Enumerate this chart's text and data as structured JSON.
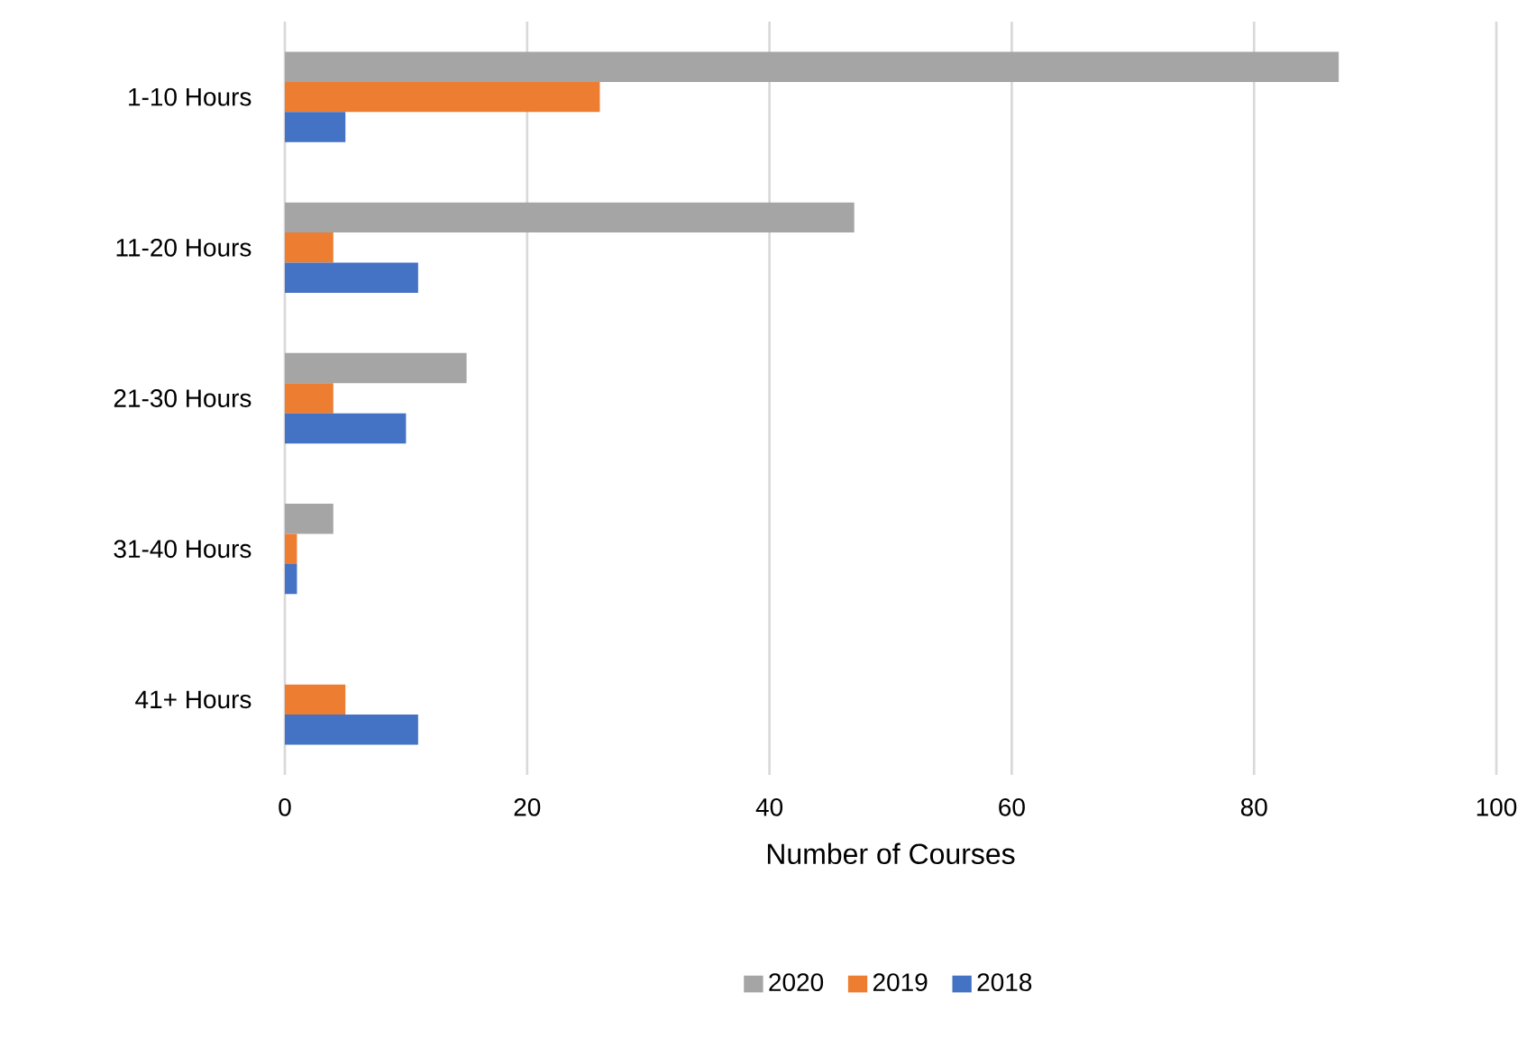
{
  "chart_data": {
    "type": "bar",
    "orientation": "horizontal",
    "xlabel": "Number of Courses",
    "categories": [
      "1-10 Hours",
      "11-20 Hours",
      "21-30 Hours",
      "31-40 Hours",
      "41+ Hours"
    ],
    "series": [
      {
        "name": "2020",
        "color": "#a5a5a5",
        "values": [
          87,
          47,
          15,
          4,
          0
        ]
      },
      {
        "name": "2019",
        "color": "#ed7d31",
        "values": [
          26,
          4,
          4,
          1,
          5
        ]
      },
      {
        "name": "2018",
        "color": "#4472c4",
        "values": [
          5,
          11,
          10,
          1,
          11
        ]
      }
    ],
    "xlim": [
      0,
      100
    ],
    "xticks": [
      0,
      20,
      40,
      60,
      80,
      100
    ],
    "grid": "x",
    "legend": "bottom"
  }
}
